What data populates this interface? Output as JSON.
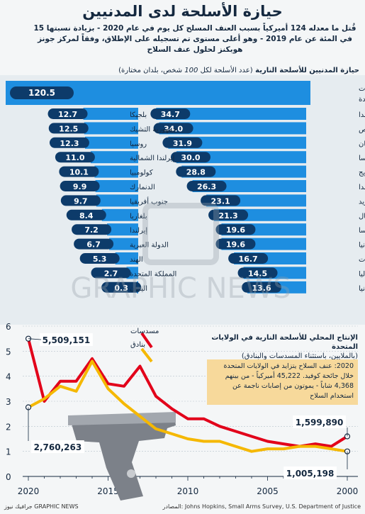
{
  "title": "حيازة الأسلحة لدى المدنيين",
  "subtitle": "قُتل ما معدله 124 أميركياً بسبب العنف المسلح كل يوم في عام 2020 - بزيادة نسبتها 15 في المئة عن عام 2019 - وهو أعلى مستوى تم تسجيله على الإطلاق، وفقاً لمركز جونز هوبكنز لحلول عنف السلاح",
  "section1": {
    "heading": "حيازة المدنيين للأسلحة النارية",
    "note_prefix": "(عدد الأسلحة لكل ",
    "note_num": "100",
    "note_suffix": " شخص، بلدان مختارة)"
  },
  "chart_data": [
    {
      "type": "bar",
      "title": "حيازة المدنيين للأسلحة النارية",
      "categories": [
        "الولايات المتحدة",
        "كندا",
        "قبرص",
        "لبنان",
        "النمسا",
        "النرويج",
        "نيوزيلندا",
        "السويد",
        "البرتغال",
        "فرنسا",
        "ألمانيا",
        "الإمارات",
        "أستراليا",
        "ليتوانيا",
        "بلجيكا",
        "جمهورية التشيك",
        "روسيا",
        "إيرلندا الشمالية",
        "كولومبيا",
        "الدنمارك",
        "جنوب أفريقيا",
        "بلغاريا",
        "إيرلندا",
        "الدولة العبرية",
        "الهند",
        "المملكة المتحدة",
        "اليابان"
      ],
      "values": [
        120.5,
        34.7,
        34.0,
        31.9,
        30.0,
        28.8,
        26.3,
        23.1,
        21.3,
        19.6,
        19.6,
        16.7,
        14.5,
        13.6,
        12.7,
        12.5,
        12.3,
        11.0,
        10.1,
        9.9,
        9.7,
        8.4,
        7.2,
        6.7,
        5.3,
        2.7,
        0.3
      ],
      "labels": [
        "120.5",
        "34.7",
        "34.0",
        "31.9",
        "30.0",
        "28.8",
        "26.3",
        "23.1",
        "21.3",
        "19.6",
        "19.6",
        "16.7",
        "14.5",
        "13.6",
        "12.7",
        "12.5",
        "12.3",
        "11.0",
        "10.1",
        "9.9",
        "9.7",
        "8.4",
        "7.2",
        "6.7",
        "5.3",
        "2.7",
        "0.3"
      ]
    },
    {
      "type": "line",
      "title": "الإنتاج المحلي للأسلحة النارية في الولايات المتحدة",
      "x": [
        2000,
        2001,
        2002,
        2003,
        2004,
        2005,
        2006,
        2007,
        2008,
        2009,
        2010,
        2011,
        2012,
        2013,
        2014,
        2015,
        2016,
        2017,
        2018,
        2019,
        2020
      ],
      "series": [
        {
          "name": "مسدسات",
          "color": "#e2001a",
          "values": [
            1.6,
            1.2,
            1.3,
            1.2,
            1.3,
            1.4,
            1.6,
            1.8,
            2.0,
            2.3,
            2.3,
            2.7,
            3.2,
            4.4,
            3.6,
            3.7,
            4.7,
            3.8,
            3.8,
            3.0,
            5.5
          ]
        },
        {
          "name": "بنادق",
          "color": "#f5b800",
          "values": [
            1.0,
            1.1,
            1.2,
            1.2,
            1.1,
            1.1,
            1.0,
            1.2,
            1.4,
            1.4,
            1.5,
            1.7,
            1.9,
            2.4,
            2.9,
            3.5,
            4.6,
            3.4,
            3.6,
            3.1,
            2.76
          ]
        }
      ],
      "ylim": [
        0,
        6
      ],
      "yticks": [
        "6",
        "5",
        "4",
        "3",
        "2",
        "1",
        "0"
      ],
      "xticks": [
        "2020",
        "2015",
        "2010",
        "2005",
        "2000"
      ],
      "annotations": {
        "handgun_2020": "5,509,151",
        "rifle_2020": "2,760,263",
        "handgun_2000": "1,599,890",
        "rifle_2000": "1,005,198"
      }
    }
  ],
  "section2": {
    "heading": "الإنتاج المحلي للأسلحة النارية في الولايات المتحدة",
    "subheading": "(بالملايين، باستثناء المسدسات والبنادق)"
  },
  "legend": {
    "handguns": "مسدسات",
    "rifles": "بنادق"
  },
  "note": "2020: عنف السلاح يتزايد في الولايات المتحدة خلال جائحة كوفيد. 45,222 أميركياً - من بينهم 4,368 شاباً - يموتون من إصابات ناجمة عن استخدام السلاح",
  "watermark": "GRAPHIC NEWS",
  "footer": {
    "source": "المصادر: Johns Hopkins, Small Arms Survey, U.S. Department of Justice",
    "credit": "جرافيك نيوز GRAPHIC NEWS"
  },
  "colors": {
    "bar": "#1e8ee0",
    "bar_dark": "#0d3b6a",
    "handgun": "#e2001a",
    "rifle": "#f5b800",
    "navy": "#14283f"
  }
}
